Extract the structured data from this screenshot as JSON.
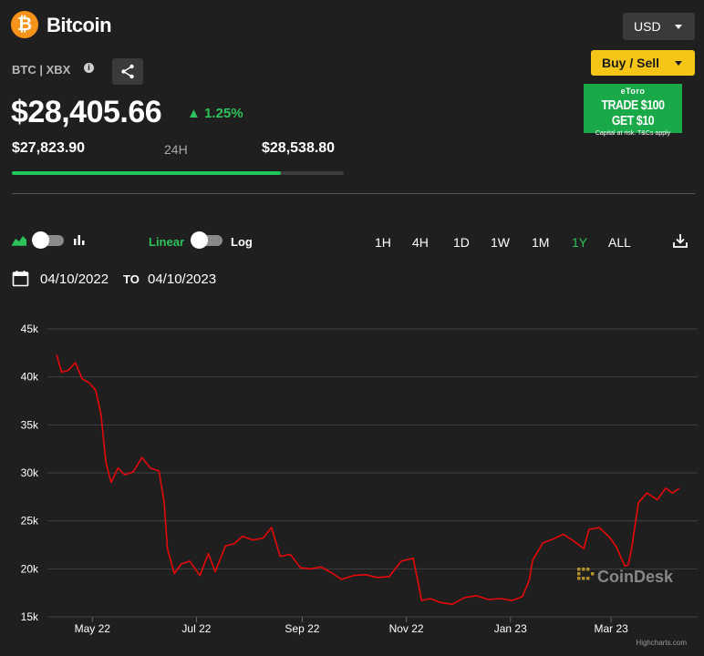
{
  "header": {
    "coin_symbol_icon": "bitcoin-icon",
    "coin_name": "Bitcoin",
    "pair": "BTC | XBX",
    "info_symbol": "i",
    "price": "$28,405.66",
    "change": "▲ 1.25%",
    "low_24h": "$27,823.90",
    "range_label": "24H",
    "high_24h": "$28,538.80",
    "range_position": 0.81
  },
  "controls": {
    "currency": "USD",
    "buy_sell": "Buy / Sell",
    "ad": {
      "brand": "eToro",
      "main": "TRADE $100 GET $10",
      "sub": "Capital at risk. T&Cs apply"
    },
    "scale_linear": "Linear",
    "scale_log": "Log",
    "ranges": [
      "1H",
      "4H",
      "1D",
      "1W",
      "1M",
      "1Y",
      "ALL"
    ],
    "active_range": "1Y",
    "date_from": "04/10/2022",
    "date_to_label": "TO",
    "date_to": "04/10/2023"
  },
  "colors": {
    "accent_green": "#2ec35a",
    "line_red": "#e5080a",
    "buy_yellow": "#f5c518",
    "bitcoin_orange": "#f7931a"
  },
  "chart_data": {
    "type": "line",
    "ylim": [
      15000,
      45000
    ],
    "yticks": [
      "45k",
      "40k",
      "35k",
      "30k",
      "25k",
      "20k",
      "15k"
    ],
    "ytick_values": [
      45000,
      40000,
      35000,
      30000,
      25000,
      20000,
      15000
    ],
    "xticks": [
      "May 22",
      "Jul 22",
      "Sep 22",
      "Nov 22",
      "Jan 23",
      "Mar 23"
    ],
    "xtick_dates": [
      "2022-05-01",
      "2022-07-01",
      "2022-09-01",
      "2022-11-01",
      "2023-01-01",
      "2023-03-01"
    ],
    "x_range": [
      "2022-04-10",
      "2023-04-10"
    ],
    "grid": true,
    "watermark": "CoinDesk",
    "credit": "Highcharts.com",
    "series": [
      {
        "x": [
          "2022-04-10",
          "2022-04-13",
          "2022-04-17",
          "2022-04-21",
          "2022-04-25",
          "2022-04-29",
          "2022-05-03",
          "2022-05-06",
          "2022-05-09",
          "2022-05-12",
          "2022-05-16",
          "2022-05-20",
          "2022-05-25",
          "2022-05-30",
          "2022-06-04",
          "2022-06-09",
          "2022-06-12",
          "2022-06-14",
          "2022-06-18",
          "2022-06-22",
          "2022-06-27",
          "2022-07-03",
          "2022-07-08",
          "2022-07-12",
          "2022-07-18",
          "2022-07-23",
          "2022-07-28",
          "2022-08-03",
          "2022-08-09",
          "2022-08-14",
          "2022-08-19",
          "2022-08-25",
          "2022-08-31",
          "2022-09-06",
          "2022-09-12",
          "2022-09-18",
          "2022-09-24",
          "2022-10-01",
          "2022-10-08",
          "2022-10-15",
          "2022-10-22",
          "2022-10-29",
          "2022-11-05",
          "2022-11-08",
          "2022-11-10",
          "2022-11-15",
          "2022-11-21",
          "2022-11-28",
          "2022-12-05",
          "2022-12-12",
          "2022-12-19",
          "2022-12-26",
          "2023-01-02",
          "2023-01-08",
          "2023-01-12",
          "2023-01-14",
          "2023-01-20",
          "2023-01-26",
          "2023-02-01",
          "2023-02-07",
          "2023-02-13",
          "2023-02-16",
          "2023-02-22",
          "2023-02-28",
          "2023-03-04",
          "2023-03-09",
          "2023-03-11",
          "2023-03-13",
          "2023-03-17",
          "2023-03-22",
          "2023-03-28",
          "2023-04-02",
          "2023-04-06",
          "2023-04-10"
        ],
        "values": [
          42300,
          40500,
          40700,
          41500,
          39800,
          39400,
          38600,
          36100,
          31000,
          29000,
          30500,
          29800,
          30100,
          31600,
          30500,
          30200,
          27000,
          22100,
          19500,
          20500,
          20800,
          19300,
          21600,
          19700,
          22400,
          22600,
          23400,
          23000,
          23200,
          24300,
          21300,
          21500,
          20100,
          20000,
          20200,
          19600,
          18900,
          19300,
          19400,
          19100,
          19200,
          20800,
          21100,
          18500,
          16700,
          16900,
          16500,
          16300,
          17000,
          17200,
          16800,
          16900,
          16700,
          17100,
          18800,
          20900,
          22700,
          23100,
          23600,
          22900,
          22100,
          24100,
          24300,
          23300,
          22300,
          20300,
          20400,
          22100,
          26900,
          27900,
          27200,
          28400,
          27900,
          28400
        ]
      }
    ]
  }
}
